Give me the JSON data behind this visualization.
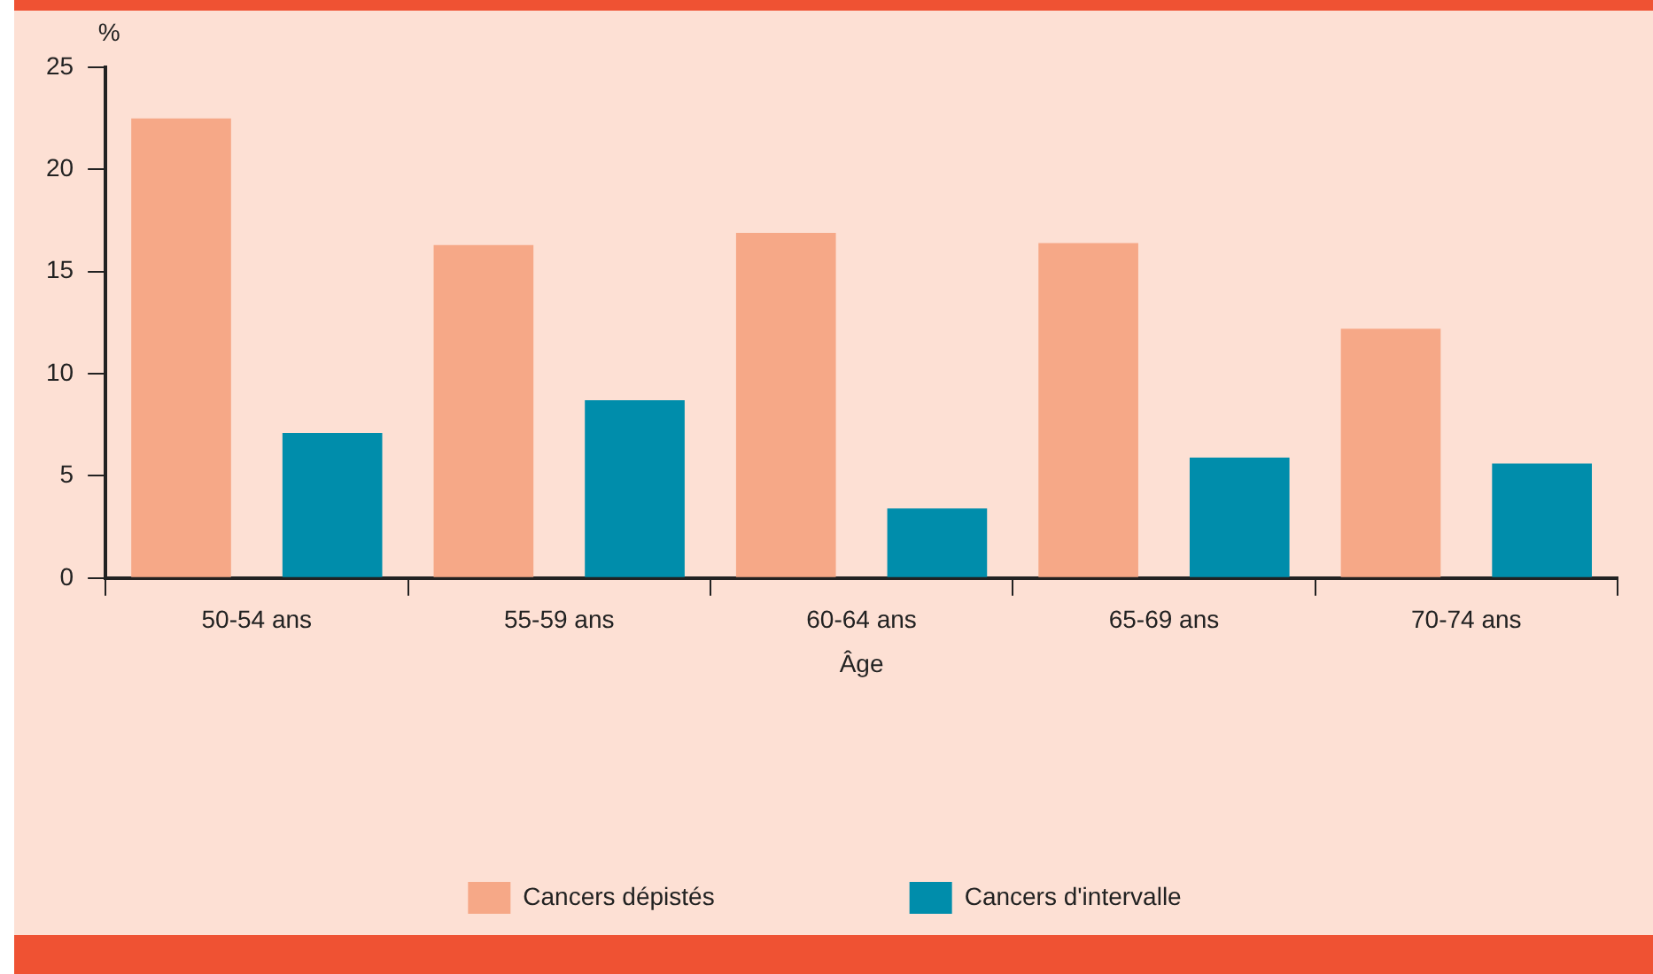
{
  "chart_data": {
    "type": "bar",
    "ylabel": "%",
    "xlabel": "Âge",
    "categories": [
      "50-54 ans",
      "55-59 ans",
      "60-64 ans",
      "65-69 ans",
      "70-74 ans"
    ],
    "series": [
      {
        "name": "Cancers dépistés",
        "color": "#f6a887",
        "values": [
          22.5,
          16.3,
          16.9,
          16.4,
          12.2
        ]
      },
      {
        "name": "Cancers d'intervalle",
        "color": "#008dab",
        "values": [
          7.1,
          8.7,
          3.4,
          5.9,
          5.6
        ]
      }
    ],
    "ylim": [
      0,
      25
    ],
    "yticks": [
      0,
      5,
      10,
      15,
      20,
      25
    ],
    "grid": false,
    "legend": "bottom"
  }
}
